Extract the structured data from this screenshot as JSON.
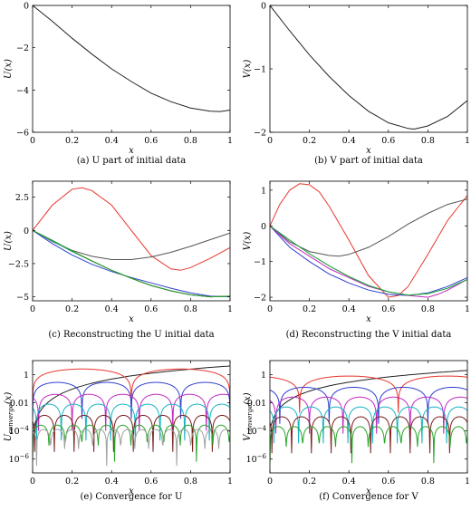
{
  "chart_data": [
    {
      "type": "line",
      "caption": "(a) U part of initial data",
      "xlabel": "x",
      "ylabel": "U(x)",
      "xlim": [
        0,
        1
      ],
      "ylim": [
        -6,
        0
      ],
      "xticks": [
        0,
        0.2,
        0.4,
        0.6,
        0.8,
        1
      ],
      "xtick_labels": [
        "0",
        "0.2",
        "0.4",
        "0.6",
        "0.8",
        "1"
      ],
      "yticks": [
        -6,
        -4,
        -2,
        0
      ],
      "ytick_labels": [
        "−6",
        "−4",
        "−2",
        "0"
      ],
      "ylog": false,
      "series": [
        {
          "color": "#222222",
          "x": [
            0,
            0.1,
            0.2,
            0.3,
            0.4,
            0.5,
            0.6,
            0.7,
            0.8,
            0.9,
            0.95,
            1.0
          ],
          "y": [
            0,
            -0.75,
            -1.55,
            -2.3,
            -3.0,
            -3.6,
            -4.15,
            -4.55,
            -4.85,
            -5.0,
            -5.02,
            -4.95
          ]
        }
      ]
    },
    {
      "type": "line",
      "caption": "(b) V part of initial data",
      "xlabel": "x",
      "ylabel": "V(x)",
      "xlim": [
        0,
        1
      ],
      "ylim": [
        -2,
        0
      ],
      "xticks": [
        0,
        0.2,
        0.4,
        0.6,
        0.8,
        1
      ],
      "xtick_labels": [
        "0",
        "0.2",
        "0.4",
        "0.6",
        "0.8",
        "1"
      ],
      "yticks": [
        -2,
        -1,
        0
      ],
      "ytick_labels": [
        "−2",
        "−1",
        "0"
      ],
      "ylog": false,
      "series": [
        {
          "color": "#222222",
          "x": [
            0,
            0.1,
            0.2,
            0.3,
            0.4,
            0.5,
            0.6,
            0.7,
            0.73,
            0.8,
            0.9,
            1.0
          ],
          "y": [
            0,
            -0.4,
            -0.78,
            -1.12,
            -1.42,
            -1.67,
            -1.85,
            -1.94,
            -1.95,
            -1.9,
            -1.75,
            -1.5
          ]
        }
      ]
    },
    {
      "type": "line",
      "caption": "(c) Reconstructing the U initial data",
      "xlabel": "x",
      "ylabel": "U(x)",
      "xlim": [
        0,
        1
      ],
      "ylim": [
        -5.3,
        3.7
      ],
      "xticks": [
        0,
        0.2,
        0.4,
        0.6,
        0.8,
        1
      ],
      "xtick_labels": [
        "0",
        "0.2",
        "0.4",
        "0.6",
        "0.8",
        "1"
      ],
      "yticks": [
        -5,
        -2.5,
        0,
        2.5
      ],
      "ytick_labels": [
        "−5",
        "−2.5",
        "0",
        "2.5"
      ],
      "ylog": false,
      "series": [
        {
          "color": "#e8362e",
          "x": [
            0,
            0.1,
            0.2,
            0.25,
            0.3,
            0.4,
            0.5,
            0.6,
            0.7,
            0.75,
            0.8,
            0.9,
            1.0
          ],
          "y": [
            0,
            1.9,
            3.1,
            3.2,
            3.0,
            1.9,
            0.0,
            -1.9,
            -2.9,
            -3.0,
            -2.8,
            -2.1,
            -1.3
          ]
        },
        {
          "color": "#555555",
          "x": [
            0,
            0.1,
            0.2,
            0.3,
            0.4,
            0.5,
            0.6,
            0.7,
            0.8,
            0.9,
            1.0
          ],
          "y": [
            0,
            -0.85,
            -1.5,
            -1.95,
            -2.2,
            -2.2,
            -2.0,
            -1.65,
            -1.2,
            -0.7,
            -0.2
          ]
        },
        {
          "color": "#2f3fd0",
          "x": [
            0,
            0.1,
            0.2,
            0.3,
            0.4,
            0.5,
            0.6,
            0.7,
            0.8,
            0.9,
            1.0
          ],
          "y": [
            0,
            -1.0,
            -1.85,
            -2.55,
            -3.1,
            -3.55,
            -3.95,
            -4.35,
            -4.7,
            -4.95,
            -5.0
          ]
        },
        {
          "color": "#16b4c4",
          "x": [
            0,
            0.1,
            0.2,
            0.3,
            0.4,
            0.5,
            0.6,
            0.7,
            0.8,
            0.9,
            1.0
          ],
          "y": [
            0,
            -0.8,
            -1.6,
            -2.3,
            -3.0,
            -3.6,
            -4.15,
            -4.55,
            -4.85,
            -5.0,
            -4.95
          ]
        },
        {
          "color": "#7a1f1f",
          "x": [
            0,
            0.1,
            0.2,
            0.3,
            0.4,
            0.5,
            0.6,
            0.7,
            0.8,
            0.9,
            1.0
          ],
          "y": [
            0,
            -0.75,
            -1.55,
            -2.3,
            -3.0,
            -3.6,
            -4.15,
            -4.55,
            -4.85,
            -5.0,
            -4.95
          ]
        },
        {
          "color": "#28a428",
          "x": [
            0,
            0.1,
            0.2,
            0.3,
            0.4,
            0.5,
            0.6,
            0.7,
            0.8,
            0.9,
            1.0
          ],
          "y": [
            0,
            -0.75,
            -1.55,
            -2.3,
            -3.0,
            -3.6,
            -4.15,
            -4.55,
            -4.85,
            -5.0,
            -4.95
          ]
        }
      ]
    },
    {
      "type": "line",
      "caption": "(d) Reconstructing the V initial data",
      "xlabel": "x",
      "ylabel": "V(x)",
      "xlim": [
        0,
        1
      ],
      "ylim": [
        -2.1,
        1.25
      ],
      "xticks": [
        0,
        0.2,
        0.4,
        0.6,
        0.8,
        1
      ],
      "xtick_labels": [
        "0",
        "0.2",
        "0.4",
        "0.6",
        "0.8",
        "1"
      ],
      "yticks": [
        -2,
        -1,
        0,
        1
      ],
      "ytick_labels": [
        "−2",
        "−1",
        "0",
        "1"
      ],
      "ylog": false,
      "series": [
        {
          "color": "#e8362e",
          "x": [
            0,
            0.05,
            0.1,
            0.15,
            0.2,
            0.25,
            0.3,
            0.4,
            0.5,
            0.6,
            0.65,
            0.7,
            0.8,
            0.9,
            1.0
          ],
          "y": [
            0,
            0.6,
            1.0,
            1.18,
            1.15,
            0.95,
            0.55,
            -0.4,
            -1.4,
            -2.0,
            -1.95,
            -1.7,
            -0.8,
            0.15,
            0.85
          ]
        },
        {
          "color": "#555555",
          "x": [
            0,
            0.1,
            0.2,
            0.3,
            0.35,
            0.4,
            0.5,
            0.6,
            0.7,
            0.8,
            0.9,
            1.0
          ],
          "y": [
            0,
            -0.45,
            -0.72,
            -0.83,
            -0.85,
            -0.8,
            -0.6,
            -0.3,
            0.05,
            0.35,
            0.6,
            0.75
          ]
        },
        {
          "color": "#2f3fd0",
          "x": [
            0,
            0.1,
            0.2,
            0.3,
            0.4,
            0.5,
            0.6,
            0.7,
            0.8,
            0.9,
            1.0
          ],
          "y": [
            0,
            -0.6,
            -1.0,
            -1.35,
            -1.6,
            -1.8,
            -1.92,
            -1.95,
            -1.88,
            -1.7,
            -1.45
          ]
        },
        {
          "color": "#c228c2",
          "x": [
            0,
            0.1,
            0.2,
            0.3,
            0.4,
            0.5,
            0.6,
            0.7,
            0.8,
            0.85,
            0.9,
            1.0
          ],
          "y": [
            0,
            -0.5,
            -0.85,
            -1.2,
            -1.45,
            -1.7,
            -1.85,
            -1.95,
            -2.0,
            -1.92,
            -1.8,
            -1.5
          ]
        },
        {
          "color": "#16b4c4",
          "x": [
            0,
            0.1,
            0.2,
            0.3,
            0.4,
            0.5,
            0.6,
            0.7,
            0.8,
            0.9,
            1.0
          ],
          "y": [
            0,
            -0.4,
            -0.78,
            -1.12,
            -1.42,
            -1.67,
            -1.85,
            -1.94,
            -1.9,
            -1.75,
            -1.5
          ]
        },
        {
          "color": "#28a428",
          "x": [
            0,
            0.1,
            0.2,
            0.3,
            0.4,
            0.5,
            0.6,
            0.7,
            0.8,
            0.9,
            1.0
          ],
          "y": [
            0,
            -0.4,
            -0.78,
            -1.12,
            -1.42,
            -1.67,
            -1.85,
            -1.94,
            -1.9,
            -1.75,
            -1.5
          ]
        }
      ]
    },
    {
      "type": "line",
      "caption": "(e) Convergence for U",
      "xlabel": "x",
      "ylabel": "U_converge(x)",
      "ylabel_main": "U",
      "ylabel_sub": "converge",
      "ylabel_tail": "(x)",
      "xlim": [
        0,
        1
      ],
      "ylim_log10": [
        -7,
        1
      ],
      "xticks": [
        0,
        0.2,
        0.4,
        0.6,
        0.8,
        1
      ],
      "xtick_labels": [
        "0",
        "0.2",
        "0.4",
        "0.6",
        "0.8",
        "1"
      ],
      "yticks_log10": [
        0,
        -2,
        -4,
        -6
      ],
      "ytick_labels": [
        "1",
        "0.01",
        "10−4",
        "10−6"
      ],
      "ylog": true,
      "series": [
        {
          "color": "#222222",
          "kind": "rising",
          "start": -4.2,
          "end": 0.62
        },
        {
          "color": "#e8362e",
          "kind": "arches",
          "level": 0.4,
          "period": 0.5,
          "phase": 0.0
        },
        {
          "color": "#2f3fd0",
          "kind": "arches",
          "level": -0.55,
          "period": 0.25,
          "phase": 0.0
        },
        {
          "color": "#c228c2",
          "kind": "arches",
          "level": -1.4,
          "period": 0.17,
          "phase": 0.03
        },
        {
          "color": "#16b4c4",
          "kind": "arches",
          "level": -2.1,
          "period": 0.125,
          "phase": 0.02
        },
        {
          "color": "#7a1f1f",
          "kind": "arches",
          "level": -2.9,
          "period": 0.1,
          "phase": 0.01
        },
        {
          "color": "#28a428",
          "kind": "arches",
          "level": -3.6,
          "period": 0.083,
          "phase": 0.0
        },
        {
          "color": "#a0a0a0",
          "kind": "arches",
          "level": -3.9,
          "period": 0.071,
          "phase": 0.02
        }
      ]
    },
    {
      "type": "line",
      "caption": "(f) Convergence for V",
      "xlabel": "x",
      "ylabel": "V_converge(x)",
      "ylabel_main": "V",
      "ylabel_sub": "converge",
      "ylabel_tail": "(x)",
      "xlim": [
        0,
        1
      ],
      "ylim_log10": [
        -7,
        1
      ],
      "xticks": [
        0,
        0.2,
        0.4,
        0.6,
        0.8,
        1
      ],
      "xtick_labels": [
        "0",
        "0.2",
        "0.4",
        "0.6",
        "0.8",
        "1"
      ],
      "yticks_log10": [
        0,
        -2,
        -4,
        -6
      ],
      "ytick_labels": [
        "1",
        "0.01",
        "10−4",
        "10−6"
      ],
      "ylog": true,
      "series": [
        {
          "color": "#222222",
          "kind": "rising",
          "start": -4.0,
          "end": 0.3
        },
        {
          "color": "#e8362e",
          "kind": "arches",
          "level": -0.1,
          "period": 0.5,
          "phase": 0.15
        },
        {
          "color": "#2f3fd0",
          "kind": "arches",
          "level": -0.9,
          "period": 0.25,
          "phase": 0.05
        },
        {
          "color": "#c228c2",
          "kind": "arches",
          "level": -1.6,
          "period": 0.17,
          "phase": 0.03
        },
        {
          "color": "#16b4c4",
          "kind": "arches",
          "level": -2.3,
          "period": 0.125,
          "phase": 0.02
        },
        {
          "color": "#7a1f1f",
          "kind": "arches",
          "level": -3.0,
          "period": 0.1,
          "phase": 0.01
        },
        {
          "color": "#28a428",
          "kind": "arches",
          "level": -3.7,
          "period": 0.083,
          "phase": 0.0
        }
      ]
    }
  ]
}
